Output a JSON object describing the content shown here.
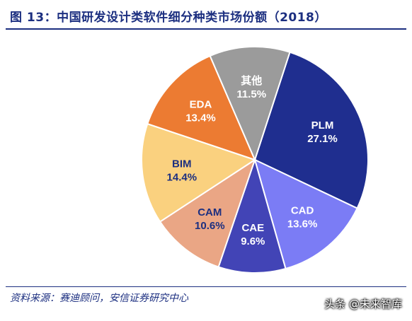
{
  "figure": {
    "title": "图 13：中国研发设计类软件细分种类市场份额（2018）",
    "source": "资料来源：赛迪顾问，安信证券研究中心",
    "watermark": "头条 @未来智库"
  },
  "chart_data": {
    "type": "pie",
    "title": "图 13：中国研发设计类软件细分种类市场份额（2018）",
    "unit": "%",
    "start_angle_deg": 18,
    "direction": "clockwise",
    "slices": [
      {
        "label": "PLM",
        "value": 27.1,
        "display": "27.1%",
        "color": "#1f2e8f",
        "text_color": "#ffffff"
      },
      {
        "label": "CAD",
        "value": 13.6,
        "display": "13.6%",
        "color": "#7b7cf5",
        "text_color": "#ffffff"
      },
      {
        "label": "CAE",
        "value": 9.6,
        "display": "9.6%",
        "color": "#4244b6",
        "text_color": "#ffffff"
      },
      {
        "label": "CAM",
        "value": 10.6,
        "display": "10.6%",
        "color": "#eaa685",
        "text_color": "#1c2f80"
      },
      {
        "label": "BIM",
        "value": 14.4,
        "display": "14.4%",
        "color": "#fad17f",
        "text_color": "#1c2f80"
      },
      {
        "label": "EDA",
        "value": 13.4,
        "display": "13.4%",
        "color": "#ec7b32",
        "text_color": "#ffffff"
      },
      {
        "label": "其他",
        "value": 11.5,
        "display": "11.5%",
        "color": "#9b9b9b",
        "text_color": "#ffffff"
      }
    ]
  }
}
